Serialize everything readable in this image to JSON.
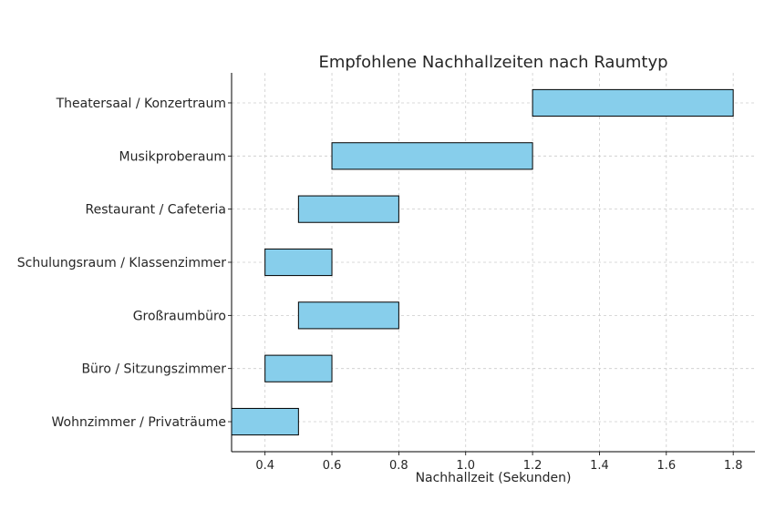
{
  "chart_data": {
    "type": "bar",
    "orientation": "horizontal",
    "title": "Empfohlene Nachhallzeiten nach Raumtyp",
    "xlabel": "Nachhallzeit (Sekunden)",
    "ylabel": "",
    "categories": [
      "Wohnzimmer / Privaträume",
      "Büro / Sitzungszimmer",
      "Großraumbüro",
      "Schulungsraum / Klassenzimmer",
      "Restaurant / Cafeteria",
      "Musikproberaum",
      "Theatersaal / Konzertraum"
    ],
    "ranges": [
      [
        0.3,
        0.5
      ],
      [
        0.4,
        0.6
      ],
      [
        0.5,
        0.8
      ],
      [
        0.4,
        0.6
      ],
      [
        0.5,
        0.8
      ],
      [
        0.6,
        1.2
      ],
      [
        1.2,
        1.8
      ]
    ],
    "xticks": [
      "0.4",
      "0.6",
      "0.8",
      "1.0",
      "1.2",
      "1.4",
      "1.6",
      "1.8"
    ],
    "xlim": [
      0.3,
      1.865
    ],
    "ylim": [
      -0.565,
      6.565
    ],
    "grid": true,
    "bar_color": "#87CEEB",
    "edge_color": "#000000",
    "grid_color": "#cccccc"
  }
}
